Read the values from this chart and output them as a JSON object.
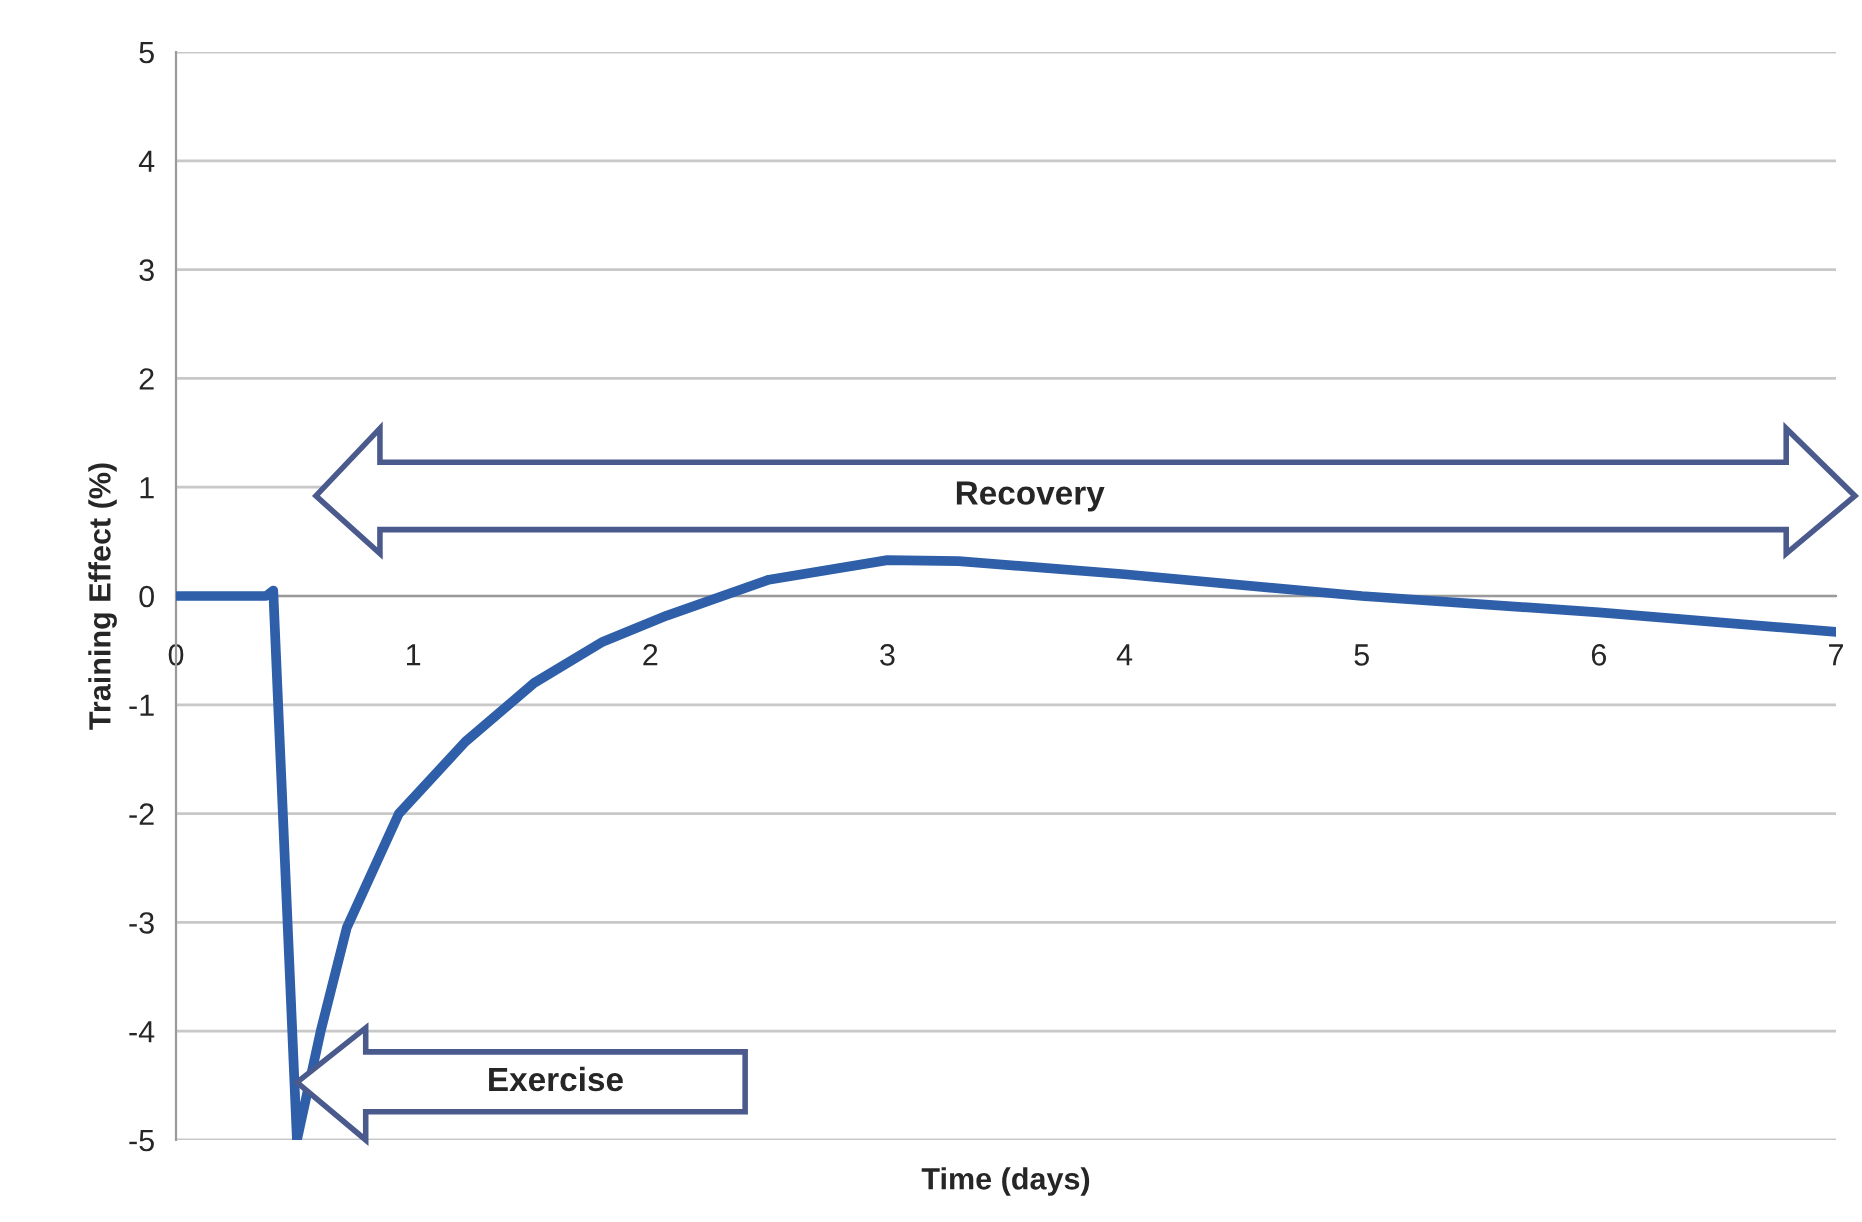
{
  "chart_data": {
    "type": "line",
    "xlabel": "Time (days)",
    "ylabel": "Training Effect (%)",
    "x": [
      0,
      0.38,
      0.41,
      0.51,
      0.61,
      0.72,
      0.94,
      1.22,
      1.51,
      1.8,
      2.07,
      2.5,
      3.0,
      3.3,
      4.0,
      5.0,
      6.0,
      7.0
    ],
    "series": [
      {
        "color": "#2e5fa8",
        "values": [
          0,
          0,
          0.05,
          -5,
          -4.0,
          -3.05,
          -2.0,
          -1.34,
          -0.8,
          -0.42,
          -0.18,
          0.15,
          0.33,
          0.32,
          0.2,
          0.0,
          -0.15,
          -0.33
        ]
      }
    ],
    "xlim": [
      0,
      7
    ],
    "ylim": [
      -5,
      5
    ],
    "xticks": [
      0,
      1,
      2,
      3,
      4,
      5,
      6,
      7
    ],
    "yticks": [
      -5,
      -4,
      -3,
      -2,
      -1,
      0,
      1,
      2,
      3,
      4,
      5
    ],
    "grid": "y",
    "line_style": "solid",
    "marker": "none",
    "annotations": [
      "Recovery",
      "Exercise"
    ]
  }
}
